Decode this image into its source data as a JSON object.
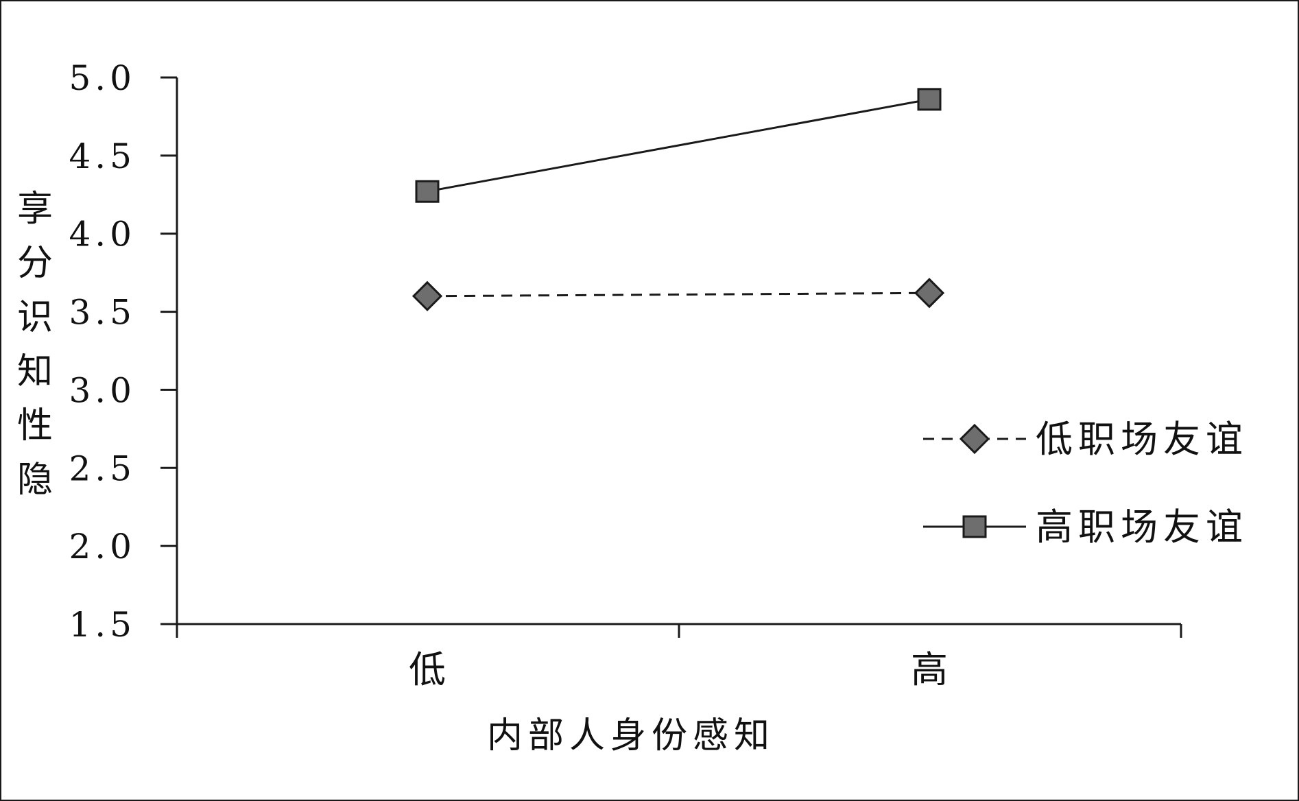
{
  "chart_data": {
    "type": "line",
    "title": "",
    "xlabel": "内部人身份感知",
    "ylabel": "隐性知识分享",
    "categories": [
      "低",
      "高"
    ],
    "ylim": [
      1.5,
      5.0
    ],
    "yticks": [
      "1.5",
      "2.0",
      "2.5",
      "3.0",
      "3.5",
      "4.0",
      "4.5",
      "5.0"
    ],
    "grid": false,
    "legend_position": "right",
    "series": [
      {
        "name": "低职场友谊",
        "values": [
          3.6,
          3.62
        ],
        "line_style": "dashed",
        "marker": "diamond",
        "color": "#6e6e6e"
      },
      {
        "name": "高职场友谊",
        "values": [
          4.27,
          4.86
        ],
        "line_style": "solid",
        "marker": "square",
        "color": "#6e6e6e"
      }
    ]
  }
}
